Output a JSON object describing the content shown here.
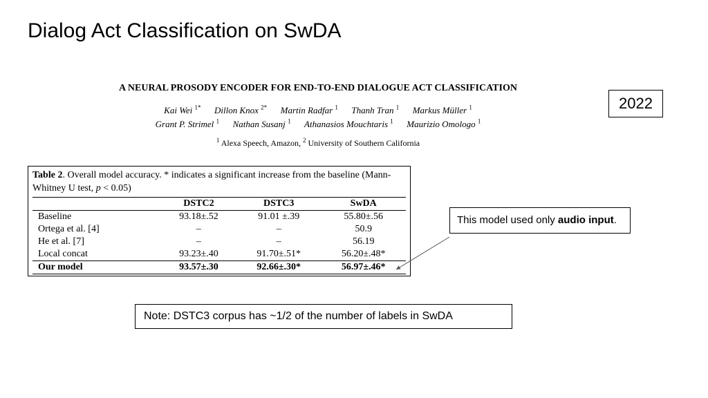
{
  "slide": {
    "title": "Dialog Act Classification on SwDA"
  },
  "paper": {
    "title": "A NEURAL PROSODY ENCODER FOR END-TO-END DIALOGUE ACT CLASSIFICATION",
    "authors_line1_html": "Kai Wei <sup>1*</sup>&nbsp;&nbsp;&nbsp;&nbsp;&nbsp;&nbsp;Dillon Knox <sup>2*</sup>&nbsp;&nbsp;&nbsp;&nbsp;&nbsp;&nbsp;Martin Radfar <sup>1</sup>&nbsp;&nbsp;&nbsp;&nbsp;&nbsp;&nbsp;Thanh Tran <sup>1</sup>&nbsp;&nbsp;&nbsp;&nbsp;&nbsp;&nbsp;Markus Müller <sup>1</sup>",
    "authors_line2_html": "Grant P. Strimel <sup>1</sup>&nbsp;&nbsp;&nbsp;&nbsp;&nbsp;&nbsp;Nathan Susanj <sup>1</sup>&nbsp;&nbsp;&nbsp;&nbsp;&nbsp;&nbsp;Athanasios Mouchtaris <sup>1</sup>&nbsp;&nbsp;&nbsp;&nbsp;&nbsp;&nbsp;Maurizio Omologo <sup>1</sup>",
    "affiliations_html": "<sup>1</sup> Alexa Speech, Amazon, <sup>2</sup> University of Southern California"
  },
  "year_box": "2022",
  "table": {
    "caption_html": "<b>Table 2</b>. Overall model accuracy. * indicates a significant increase from the baseline (Mann-Whitney U test, <i>p</i> &lt; 0.05)",
    "columns": [
      "",
      "DSTC2",
      "DSTC3",
      "SwDA"
    ],
    "rows": [
      {
        "method": "Baseline",
        "dstc2": "93.18±.52",
        "dstc3": "91.01 ±.39",
        "swda": "55.80±.56",
        "bold": false
      },
      {
        "method": "Ortega et al. [4]",
        "dstc2": "–",
        "dstc3": "–",
        "swda": "50.9",
        "bold": false
      },
      {
        "method": "He et al. [7]",
        "dstc2": "–",
        "dstc3": "–",
        "swda": "56.19",
        "bold": false
      },
      {
        "method": "Local concat",
        "dstc2": "93.23±.40",
        "dstc3": "91.70±.51*",
        "swda": "56.20±.48*",
        "bold": false
      },
      {
        "method": "Our model",
        "dstc2": "93.57±.30",
        "dstc3": "92.66±.30*",
        "swda": "56.97±.46*",
        "bold": true
      }
    ]
  },
  "callout": {
    "text_html": "This model used only <b>audio input</b>."
  },
  "note": {
    "text": "Note: DSTC3 corpus has ~1/2 of the number of labels in SwDA"
  },
  "arrow": {
    "stroke": "#555555",
    "stroke_width": 1
  }
}
